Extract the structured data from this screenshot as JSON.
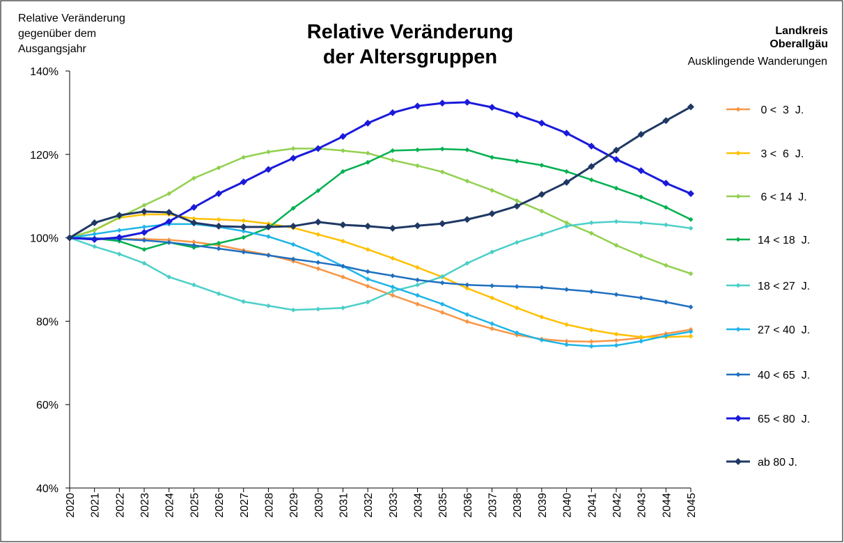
{
  "chart_data": {
    "type": "line",
    "title": [
      "Relative Veränderung",
      "der Altersgruppen"
    ],
    "ylabel": [
      "Relative Veränderung",
      "gegenüber dem",
      "Ausgangsjahr"
    ],
    "region": [
      "Landkreis",
      "Oberallgäu"
    ],
    "subtitle": "Ausklingende Wanderungen",
    "categories": [
      "2020",
      "2021",
      "2022",
      "2023",
      "2024",
      "2025",
      "2026",
      "2027",
      "2028",
      "2029",
      "2030",
      "2031",
      "2032",
      "2033",
      "2034",
      "2035",
      "2036",
      "2037",
      "2038",
      "2039",
      "2040",
      "2041",
      "2042",
      "2043",
      "2044",
      "2045"
    ],
    "ylim": [
      40,
      140
    ],
    "yticks": [
      {
        "value": 40,
        "label": "40%"
      },
      {
        "value": 60,
        "label": "60%"
      },
      {
        "value": 80,
        "label": "80%"
      },
      {
        "value": 100,
        "label": "100%"
      },
      {
        "value": 120,
        "label": "120%"
      },
      {
        "value": 140,
        "label": "140%"
      }
    ],
    "series": [
      {
        "name": " 0 <  3  J.",
        "color": "#f79646",
        "values": [
          100,
          99.9,
          99.7,
          99.7,
          99.5,
          99.0,
          98.2,
          97.0,
          95.9,
          94.4,
          92.6,
          90.6,
          88.4,
          86.2,
          84.1,
          82.1,
          79.9,
          78.2,
          76.7,
          75.7,
          75.2,
          75.1,
          75.4,
          76.0,
          77.0,
          78.0
        ]
      },
      {
        "name": " 3 <  6  J.",
        "color": "#ffc000",
        "values": [
          100,
          101.8,
          104.8,
          105.6,
          105.6,
          104.6,
          104.4,
          104.1,
          103.4,
          102.4,
          100.8,
          99.2,
          97.2,
          95.1,
          92.9,
          90.6,
          87.9,
          85.6,
          83.2,
          81.0,
          79.2,
          77.9,
          76.9,
          76.2,
          76.2,
          76.4
        ]
      },
      {
        "name": " 6 < 14  J.",
        "color": "#92d050",
        "values": [
          100,
          101.9,
          104.9,
          107.8,
          110.6,
          114.3,
          116.8,
          119.3,
          120.6,
          121.4,
          121.4,
          120.9,
          120.3,
          118.6,
          117.3,
          115.8,
          113.6,
          111.4,
          108.9,
          106.4,
          103.6,
          101.1,
          98.2,
          95.7,
          93.4,
          91.4
        ]
      },
      {
        "name": "14 < 18  J.",
        "color": "#00b050",
        "values": [
          100,
          99.9,
          99.2,
          97.2,
          98.9,
          97.7,
          98.7,
          100.1,
          102.4,
          107.1,
          111.3,
          115.9,
          118.1,
          120.9,
          121.1,
          121.3,
          121.1,
          119.3,
          118.4,
          117.4,
          115.9,
          113.9,
          111.9,
          109.8,
          107.3,
          104.4
        ]
      },
      {
        "name": "18 < 27  J.",
        "color": "#4bcfc8",
        "values": [
          100,
          97.9,
          96.1,
          93.9,
          90.6,
          88.7,
          86.6,
          84.7,
          83.7,
          82.7,
          82.9,
          83.2,
          84.6,
          87.2,
          88.7,
          90.7,
          93.9,
          96.6,
          98.9,
          100.8,
          102.8,
          103.6,
          103.9,
          103.6,
          103.1,
          102.3
        ]
      },
      {
        "name": "27 < 40  J.",
        "color": "#1fb4e8",
        "values": [
          100,
          100.9,
          101.8,
          102.6,
          103.3,
          103.3,
          102.6,
          101.6,
          100.3,
          98.4,
          96.1,
          93.2,
          90.1,
          88.2,
          86.2,
          84.1,
          81.6,
          79.4,
          77.2,
          75.5,
          74.4,
          74.0,
          74.2,
          75.2,
          76.5,
          77.5
        ]
      },
      {
        "name": "40 < 65  J.",
        "color": "#1f6fbf",
        "values": [
          100,
          99.9,
          99.7,
          99.4,
          98.9,
          98.2,
          97.4,
          96.6,
          95.8,
          94.9,
          94.1,
          93.2,
          91.9,
          90.9,
          89.9,
          89.2,
          88.7,
          88.5,
          88.3,
          88.1,
          87.6,
          87.1,
          86.4,
          85.6,
          84.6,
          83.4
        ]
      },
      {
        "name": "65 < 80  J.",
        "color": "#1a1adb",
        "values": [
          100,
          99.6,
          100.1,
          101.3,
          103.9,
          107.3,
          110.6,
          113.4,
          116.4,
          119.1,
          121.4,
          124.3,
          127.5,
          130.0,
          131.6,
          132.3,
          132.5,
          131.3,
          129.5,
          127.5,
          125.1,
          122.0,
          118.8,
          116.1,
          113.1,
          110.6
        ]
      },
      {
        "name": "ab 80 J.",
        "color": "#1f3864",
        "values": [
          100,
          103.6,
          105.4,
          106.3,
          106.1,
          103.6,
          102.8,
          102.6,
          102.6,
          102.8,
          103.8,
          103.1,
          102.8,
          102.3,
          102.9,
          103.4,
          104.4,
          105.8,
          107.6,
          110.4,
          113.3,
          117.1,
          121.0,
          124.8,
          128.1,
          131.4
        ]
      }
    ]
  }
}
